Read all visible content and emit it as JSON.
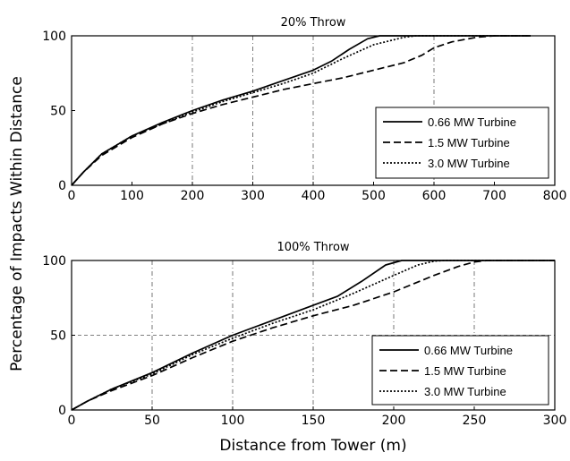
{
  "figure": {
    "ylabel": "Percentage of Impacts Within Distance",
    "xlabel": "Distance from Tower (m)"
  },
  "chart_data": [
    {
      "type": "line",
      "title": "20% Throw",
      "xlim": [
        0,
        800
      ],
      "ylim": [
        0,
        100
      ],
      "xticks": [
        0,
        100,
        200,
        300,
        400,
        500,
        600,
        700,
        800
      ],
      "yticks": [
        0,
        50,
        100
      ],
      "grid": "dash-dot at x = 200, 300, 400, 600",
      "legend_position": "bottom-right",
      "series": [
        {
          "name": "0.66 MW Turbine",
          "style": "solid",
          "x": [
            0,
            20,
            50,
            100,
            150,
            200,
            250,
            300,
            350,
            400,
            430,
            460,
            490,
            510,
            530,
            560,
            600,
            700,
            760
          ],
          "y": [
            0,
            9,
            21,
            33,
            42,
            50,
            57,
            63,
            70,
            77,
            83,
            91,
            98,
            100,
            100,
            100,
            100,
            100,
            100
          ]
        },
        {
          "name": "1.5 MW Turbine",
          "style": "dashed",
          "x": [
            0,
            20,
            50,
            100,
            150,
            200,
            250,
            300,
            350,
            400,
            450,
            500,
            550,
            580,
            600,
            630,
            670,
            700,
            760
          ],
          "y": [
            0,
            9,
            20,
            32,
            41,
            48,
            54,
            59,
            64,
            68,
            72,
            77,
            82,
            87,
            92,
            96,
            99,
            100,
            100
          ]
        },
        {
          "name": "3.0 MW Turbine",
          "style": "dotted",
          "x": [
            0,
            20,
            50,
            100,
            150,
            200,
            250,
            300,
            350,
            400,
            450,
            500,
            550,
            570,
            700,
            760
          ],
          "y": [
            0,
            9,
            21,
            33,
            41,
            49,
            56,
            62,
            68,
            75,
            85,
            94,
            99,
            100,
            100,
            100
          ]
        }
      ]
    },
    {
      "type": "line",
      "title": "100% Throw",
      "xlim": [
        0,
        300
      ],
      "ylim": [
        0,
        100
      ],
      "xticks": [
        0,
        50,
        100,
        150,
        200,
        250,
        300
      ],
      "yticks": [
        0,
        50,
        100
      ],
      "grid": "dash-dot at x = 50, 100, 150, 200, 250; dashed at y = 50",
      "legend_position": "bottom-right",
      "series": [
        {
          "name": "0.66 MW Turbine",
          "style": "solid",
          "x": [
            0,
            10,
            25,
            50,
            75,
            100,
            125,
            150,
            165,
            180,
            195,
            205,
            215,
            240,
            300
          ],
          "y": [
            0,
            6,
            14,
            25,
            38,
            50,
            60,
            70,
            76,
            86,
            97,
            100,
            100,
            100,
            100
          ]
        },
        {
          "name": "1.5 MW Turbine",
          "style": "dashed",
          "x": [
            0,
            10,
            25,
            50,
            75,
            100,
            125,
            150,
            175,
            200,
            225,
            240,
            250,
            258,
            300
          ],
          "y": [
            0,
            6,
            13,
            23,
            35,
            46,
            55,
            63,
            70,
            79,
            90,
            96,
            99,
            100,
            100
          ]
        },
        {
          "name": "3.0 MW Turbine",
          "style": "dotted",
          "x": [
            0,
            10,
            25,
            50,
            75,
            100,
            125,
            150,
            175,
            200,
            215,
            225,
            232,
            300
          ],
          "y": [
            0,
            6,
            14,
            24,
            37,
            48,
            58,
            67,
            78,
            90,
            97,
            99.5,
            100,
            100
          ]
        }
      ]
    }
  ]
}
